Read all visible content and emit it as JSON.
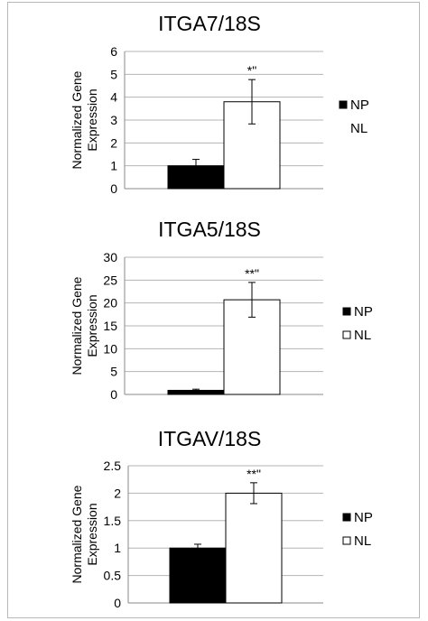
{
  "chart_data": [
    {
      "type": "bar",
      "title": "ITGA7/18S",
      "ylabel": "Normalized Gene Expression",
      "ylabel_lines": [
        "Normalized Gene",
        "Expression"
      ],
      "xlabel": "",
      "ylim": [
        0,
        6
      ],
      "yticks": [
        "0",
        "1",
        "2",
        "3",
        "4",
        "5",
        "6"
      ],
      "grid": true,
      "legend_position": "right",
      "series": [
        {
          "name": "NP",
          "value": 1.0,
          "error": 0.28,
          "color": "#000000"
        },
        {
          "name": "NL",
          "value": 3.8,
          "error": 0.97,
          "color": "#ffffff"
        }
      ],
      "annotation": "*\""
    },
    {
      "type": "bar",
      "title": "ITGA5/18S",
      "ylabel": "Normalized Gene Expression",
      "ylabel_lines": [
        "Normalized Gene",
        "Expression"
      ],
      "xlabel": "",
      "ylim": [
        0,
        30
      ],
      "yticks": [
        "0",
        "5",
        "10",
        "15",
        "20",
        "25",
        "30"
      ],
      "grid": true,
      "legend_position": "right",
      "series": [
        {
          "name": "NP",
          "value": 0.9,
          "error": 0.25,
          "color": "#000000"
        },
        {
          "name": "NL",
          "value": 20.7,
          "error": 3.8,
          "color": "#ffffff"
        }
      ],
      "annotation": "**\""
    },
    {
      "type": "bar",
      "title": "ITGAV/18S",
      "ylabel": "Normalized Gene Expression",
      "ylabel_lines": [
        "Normalized Gene",
        "Expression"
      ],
      "xlabel": "",
      "ylim": [
        0,
        2.5
      ],
      "yticks": [
        "0",
        "0.5",
        "1",
        "1.5",
        "2",
        "2.5"
      ],
      "grid": true,
      "legend_position": "right",
      "series": [
        {
          "name": "NP",
          "value": 1.0,
          "error": 0.07,
          "color": "#000000"
        },
        {
          "name": "NL",
          "value": 2.0,
          "error": 0.19,
          "color": "#ffffff"
        }
      ],
      "annotation": "**\""
    }
  ]
}
